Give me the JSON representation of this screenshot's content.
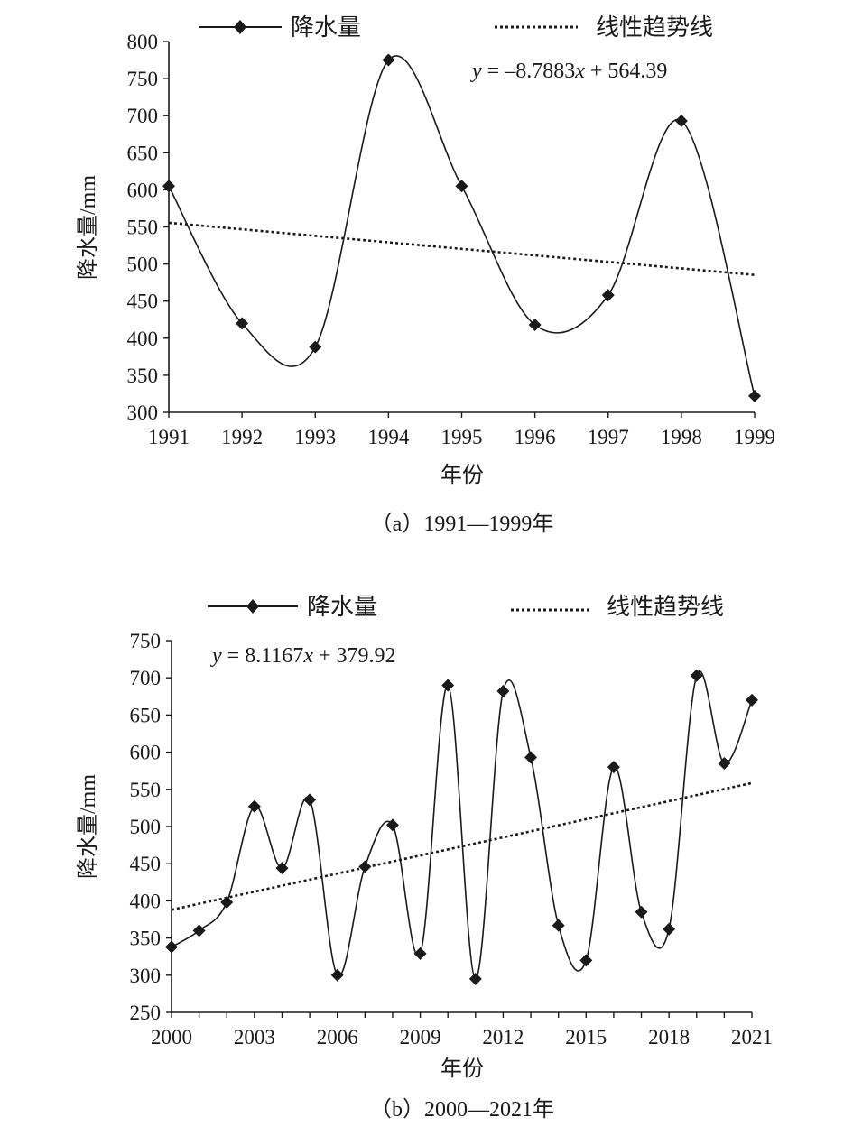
{
  "chart_data": [
    {
      "type": "line",
      "caption": "（a）1991—1999年",
      "xlabel": "年份",
      "ylabel": "降水量/mm",
      "x": [
        1991,
        1992,
        1993,
        1994,
        1995,
        1996,
        1997,
        1998,
        1999
      ],
      "xticks": [
        "1991",
        "1992",
        "1993",
        "1994",
        "1995",
        "1996",
        "1997",
        "1998",
        "1999"
      ],
      "ylim": [
        300,
        800
      ],
      "yticks": [
        "300",
        "350",
        "400",
        "450",
        "500",
        "550",
        "600",
        "650",
        "700",
        "750",
        "800"
      ],
      "series": [
        {
          "name": "降水量",
          "style": "smooth line with diamond markers",
          "color": "#1a1a1a",
          "values": [
            605,
            420,
            388,
            775,
            605,
            418,
            458,
            693,
            322
          ]
        }
      ],
      "trendline": {
        "name": "线性趋势线",
        "style": "dotted",
        "slope": -8.7883,
        "intercept": 564.39
      },
      "equation": {
        "y": "y",
        "eq": " = ‒8.7883",
        "x": "x",
        "rest": " + 564.39"
      },
      "legend_position": "top"
    },
    {
      "type": "line",
      "caption": "（b）2000—2021年",
      "xlabel": "年份",
      "ylabel": "降水量/mm",
      "x": [
        2000,
        2001,
        2002,
        2003,
        2004,
        2005,
        2006,
        2007,
        2008,
        2009,
        2010,
        2011,
        2012,
        2013,
        2014,
        2015,
        2016,
        2017,
        2018,
        2019,
        2020,
        2021
      ],
      "xticks": [
        "2000",
        "2003",
        "2006",
        "2009",
        "2012",
        "2015",
        "2018",
        "2021"
      ],
      "ylim": [
        250,
        750
      ],
      "yticks": [
        "250",
        "300",
        "350",
        "400",
        "450",
        "500",
        "550",
        "600",
        "650",
        "700",
        "750"
      ],
      "series": [
        {
          "name": "降水量",
          "style": "smooth line with diamond markers",
          "color": "#1a1a1a",
          "values": [
            338,
            360,
            398,
            527,
            444,
            536,
            300,
            446,
            502,
            329,
            690,
            295,
            682,
            593,
            367,
            320,
            580,
            385,
            362,
            703,
            585,
            670
          ]
        }
      ],
      "trendline": {
        "name": "线性趋势线",
        "style": "dotted",
        "slope": 8.1167,
        "intercept": 379.92
      },
      "equation": {
        "y": "y",
        "eq": " = 8.1167",
        "x": "x",
        "rest": " + 379.92"
      },
      "legend_position": "top"
    }
  ]
}
